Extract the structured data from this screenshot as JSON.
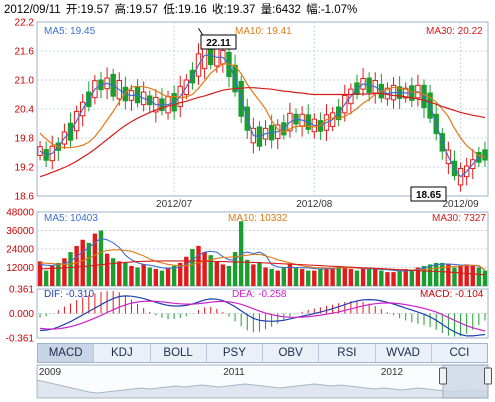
{
  "header": {
    "date": "2012/09/11",
    "open": "开:19.57",
    "high": "高:19.57",
    "low": "低:19.16",
    "close": "收:19.37",
    "volume": "量:6432",
    "change": "幅:-1.07%"
  },
  "price_panel": {
    "ma5_label": "MA5: 19.45",
    "ma10_label": "MA10: 19.41",
    "ma30_label": "MA30: 20.22",
    "max_marker": "22.11",
    "min_marker": "18.65"
  },
  "volume_panel": {
    "ma5_label": "MA5: 10403",
    "ma10_label": "MA10: 10332",
    "ma30_label": "MA30: 7327"
  },
  "macd_panel": {
    "dif_label": "DIF: -0.310",
    "dea_label": "DEA: -0.258",
    "macd_label": "MACD: -0.104"
  },
  "tabs": [
    "MACD",
    "KDJ",
    "BOLL",
    "PSY",
    "OBV",
    "RSI",
    "WVAD",
    "CCI"
  ],
  "active_tab": "MACD",
  "navigator": {
    "years": [
      "2009",
      "2011",
      "2012"
    ]
  },
  "colors": {
    "up": "#e31a1c",
    "down": "#1a9e2e",
    "ma5": "#3b6fd0",
    "ma10": "#e07a12",
    "ma30": "#d41c1c",
    "dif": "#1f3fb0",
    "dea": "#d020c8",
    "grid": "#c8d3e2",
    "axis_text": "#cc0000"
  },
  "chart_data": [
    {
      "type": "candlestick",
      "title": "",
      "x_ticks": [
        "2012/07",
        "2012/08",
        "2012/09"
      ],
      "y_ticks": [
        18.6,
        19.2,
        19.8,
        20.4,
        21.0,
        21.6,
        22.2
      ],
      "ylim": [
        18.6,
        22.2
      ],
      "grid": true,
      "series": [
        {
          "name": "MA5",
          "values": [
            19.53,
            19.45,
            19.48,
            19.62,
            19.8,
            19.93,
            20.15,
            20.4,
            20.6,
            20.81,
            20.9,
            20.93,
            20.89,
            20.8,
            20.71,
            20.68,
            20.69,
            20.62,
            20.58,
            20.49,
            20.49,
            20.49,
            20.54,
            20.66,
            20.85,
            21.07,
            21.31,
            21.51,
            21.51,
            21.47,
            21.47,
            21.32,
            21.03,
            20.61,
            20.2,
            19.85,
            19.83,
            19.89,
            19.91,
            19.93,
            19.99,
            20.13,
            20.19,
            20.17,
            20.13,
            20.06,
            20.05,
            20.12,
            20.18,
            20.31,
            20.5,
            20.66,
            20.82,
            20.92,
            20.89,
            20.86,
            20.77,
            20.72,
            20.74,
            20.74,
            20.73,
            20.73,
            20.76,
            20.66,
            20.47,
            20.09,
            19.71,
            19.41,
            19.17,
            19.0,
            19.11,
            19.26,
            19.4,
            19.45
          ]
        },
        {
          "name": "MA10",
          "values": [
            19.9,
            19.78,
            19.68,
            19.62,
            19.6,
            19.6,
            19.62,
            19.65,
            19.71,
            19.83,
            19.99,
            20.17,
            20.35,
            20.55,
            20.73,
            20.85,
            20.87,
            20.86,
            20.83,
            20.78,
            20.71,
            20.65,
            20.66,
            20.63,
            20.65,
            20.7,
            20.83,
            20.98,
            21.14,
            21.24,
            21.34,
            21.33,
            21.29,
            21.13,
            20.91,
            20.73,
            20.57,
            20.4,
            20.16,
            19.98,
            19.92,
            19.99,
            20.04,
            20.04,
            20.04,
            20.03,
            20.06,
            20.18,
            20.22,
            20.21,
            20.25,
            20.32,
            20.41,
            20.52,
            20.6,
            20.71,
            20.77,
            20.8,
            20.85,
            20.83,
            20.81,
            20.75,
            20.74,
            20.7,
            20.64,
            20.54,
            20.4,
            20.24,
            20.0,
            19.8,
            19.64,
            19.54,
            19.43,
            19.41
          ]
        },
        {
          "name": "MA30",
          "values": [
            19.0,
            19.04,
            19.09,
            19.14,
            19.19,
            19.25,
            19.32,
            19.4,
            19.48,
            19.57,
            19.67,
            19.77,
            19.87,
            19.97,
            20.06,
            20.14,
            20.21,
            20.27,
            20.33,
            20.38,
            20.42,
            20.46,
            20.49,
            20.53,
            20.56,
            20.6,
            20.64,
            20.67,
            20.71,
            20.75,
            20.79,
            20.81,
            20.82,
            20.83,
            20.84,
            20.84,
            20.83,
            20.82,
            20.81,
            20.79,
            20.77,
            20.76,
            20.74,
            20.73,
            20.71,
            20.7,
            20.7,
            20.7,
            20.7,
            20.7,
            20.7,
            20.7,
            20.71,
            20.71,
            20.71,
            20.72,
            20.72,
            20.7,
            20.68,
            20.67,
            20.65,
            20.63,
            20.61,
            20.58,
            20.54,
            20.5,
            20.45,
            20.41,
            20.37,
            20.33,
            20.3,
            20.27,
            20.25,
            20.22
          ]
        }
      ]
    },
    {
      "type": "bar",
      "title": "",
      "y_ticks": [
        0,
        12000,
        24000,
        36000,
        48000
      ],
      "ylim": [
        0,
        48000
      ],
      "values": [
        16000,
        10000,
        13000,
        15000,
        18000,
        22000,
        26000,
        30000,
        28000,
        34000,
        36000,
        21000,
        18000,
        16000,
        15000,
        13000,
        12000,
        14000,
        12000,
        11000,
        10000,
        12000,
        13000,
        15000,
        19000,
        24000,
        26000,
        22000,
        20000,
        16000,
        14000,
        13000,
        22000,
        42000,
        17000,
        14000,
        15000,
        12000,
        11000,
        10000,
        12000,
        14000,
        12000,
        11000,
        10000,
        10000,
        11000,
        12000,
        12000,
        13000,
        12000,
        11000,
        10000,
        11000,
        12000,
        11000,
        10000,
        9000,
        9000,
        10000,
        11000,
        10000,
        12000,
        13000,
        14000,
        15000,
        15000,
        14000,
        12000,
        13000,
        14000,
        13000,
        12000,
        10000
      ],
      "series": [
        {
          "name": "MA5",
          "values": [
            14000,
            13500,
            13200,
            14000,
            14500,
            16000,
            19000,
            22000,
            25000,
            28000,
            31000,
            30000,
            28000,
            25000,
            20000,
            17000,
            15000,
            14000,
            13500,
            12800,
            11800,
            11500,
            11600,
            12400,
            13800,
            17000,
            20000,
            22000,
            22500,
            22000,
            19000,
            17000,
            17000,
            21000,
            22000,
            21000,
            22000,
            20000,
            14000,
            12400,
            12000,
            12000,
            12000,
            11800,
            11800,
            11400,
            11000,
            11000,
            11200,
            11600,
            12000,
            12000,
            11600,
            11400,
            11200,
            11000,
            10800,
            10600,
            10200,
            9800,
            9800,
            10200,
            10800,
            11800,
            12800,
            13800,
            14200,
            14200,
            14000,
            13600,
            13400,
            13200,
            13000,
            10403
          ]
        },
        {
          "name": "MA10",
          "values": [
            15000,
            14800,
            14500,
            14200,
            14000,
            14200,
            15000,
            16500,
            18000,
            20000,
            22000,
            23000,
            23500,
            23500,
            23000,
            22500,
            21000,
            19500,
            17500,
            16000,
            15000,
            14000,
            13500,
            13000,
            13200,
            14000,
            15000,
            16000,
            17000,
            18000,
            18500,
            18700,
            19000,
            19500,
            20000,
            20500,
            20500,
            19500,
            18500,
            17000,
            16000,
            15000,
            14000,
            13000,
            12500,
            12000,
            11800,
            11700,
            11700,
            11700,
            11800,
            11800,
            11700,
            11600,
            11500,
            11400,
            11200,
            11000,
            10800,
            10600,
            10400,
            10300,
            10400,
            10700,
            11000,
            11500,
            12000,
            12400,
            12700,
            13000,
            13300,
            13500,
            13300,
            10332
          ]
        },
        {
          "name": "MA30",
          "values": [
            11000,
            11200,
            11400,
            11600,
            11800,
            12000,
            12300,
            12600,
            13000,
            13400,
            13800,
            14200,
            14600,
            15000,
            15300,
            15600,
            15800,
            16000,
            16100,
            16200,
            16300,
            16300,
            16300,
            16300,
            16300,
            16300,
            16200,
            16100,
            16000,
            15900,
            15800,
            15700,
            15600,
            15500,
            15400,
            15300,
            15200,
            15000,
            14800,
            14600,
            14400,
            14200,
            14000,
            13800,
            13600,
            13400,
            13200,
            13000,
            12800,
            12600,
            12400,
            12200,
            12000,
            11800,
            11600,
            11400,
            11200,
            11000,
            10800,
            10600,
            10400,
            10200,
            10000,
            9800,
            9600,
            9400,
            9200,
            9000,
            8800,
            8500,
            8200,
            7900,
            7600,
            7327
          ]
        }
      ]
    },
    {
      "type": "line",
      "title": "",
      "y_ticks": [
        -0.361,
        0.0,
        0.361
      ],
      "ylim": [
        -0.361,
        0.361
      ],
      "series": [
        {
          "name": "DIF",
          "values": [
            -0.25,
            -0.245,
            -0.23,
            -0.2,
            -0.16,
            -0.12,
            -0.07,
            -0.02,
            0.03,
            0.08,
            0.13,
            0.18,
            0.22,
            0.25,
            0.26,
            0.255,
            0.24,
            0.22,
            0.195,
            0.165,
            0.14,
            0.12,
            0.11,
            0.11,
            0.12,
            0.14,
            0.17,
            0.2,
            0.215,
            0.21,
            0.19,
            0.15,
            0.1,
            0.04,
            -0.02,
            -0.07,
            -0.1,
            -0.11,
            -0.115,
            -0.11,
            -0.1,
            -0.08,
            -0.06,
            -0.04,
            -0.02,
            0.0,
            0.02,
            0.045,
            0.07,
            0.1,
            0.13,
            0.16,
            0.185,
            0.2,
            0.205,
            0.2,
            0.185,
            0.165,
            0.14,
            0.11,
            0.08,
            0.05,
            0.02,
            -0.01,
            -0.05,
            -0.1,
            -0.16,
            -0.22,
            -0.27,
            -0.31,
            -0.33,
            -0.33,
            -0.32,
            -0.31
          ]
        },
        {
          "name": "DEA",
          "values": [
            -0.22,
            -0.225,
            -0.228,
            -0.225,
            -0.212,
            -0.194,
            -0.169,
            -0.139,
            -0.105,
            -0.068,
            -0.028,
            0.014,
            0.055,
            0.094,
            0.127,
            0.153,
            0.17,
            0.18,
            0.183,
            0.18,
            0.172,
            0.162,
            0.151,
            0.143,
            0.138,
            0.138,
            0.144,
            0.155,
            0.167,
            0.176,
            0.179,
            0.173,
            0.158,
            0.135,
            0.104,
            0.069,
            0.035,
            0.006,
            -0.018,
            -0.036,
            -0.049,
            -0.055,
            -0.056,
            -0.053,
            -0.046,
            -0.037,
            -0.025,
            -0.011,
            0.005,
            0.024,
            0.045,
            0.068,
            0.092,
            0.113,
            0.131,
            0.145,
            0.153,
            0.156,
            0.153,
            0.144,
            0.131,
            0.115,
            0.096,
            0.075,
            0.05,
            0.02,
            -0.016,
            -0.057,
            -0.1,
            -0.142,
            -0.18,
            -0.21,
            -0.235,
            -0.258
          ]
        },
        {
          "name": "MACD",
          "values": [
            -0.06,
            -0.04,
            -0.004,
            0.05,
            0.104,
            0.148,
            0.198,
            0.238,
            0.27,
            0.296,
            0.316,
            0.332,
            0.33,
            0.312,
            0.266,
            0.204,
            0.14,
            0.08,
            0.024,
            -0.03,
            -0.064,
            -0.084,
            -0.082,
            -0.066,
            -0.036,
            0.004,
            0.052,
            0.09,
            0.096,
            0.068,
            0.022,
            -0.046,
            -0.116,
            -0.19,
            -0.248,
            -0.278,
            -0.27,
            -0.232,
            -0.194,
            -0.148,
            -0.102,
            -0.05,
            -0.008,
            0.026,
            0.052,
            0.074,
            0.09,
            0.112,
            0.13,
            0.152,
            0.17,
            0.184,
            0.186,
            0.174,
            0.148,
            0.11,
            0.064,
            0.018,
            -0.026,
            -0.068,
            -0.102,
            -0.13,
            -0.152,
            -0.17,
            -0.2,
            -0.24,
            -0.288,
            -0.326,
            -0.34,
            -0.336,
            -0.3,
            -0.24,
            -0.17,
            -0.104
          ]
        }
      ]
    }
  ]
}
